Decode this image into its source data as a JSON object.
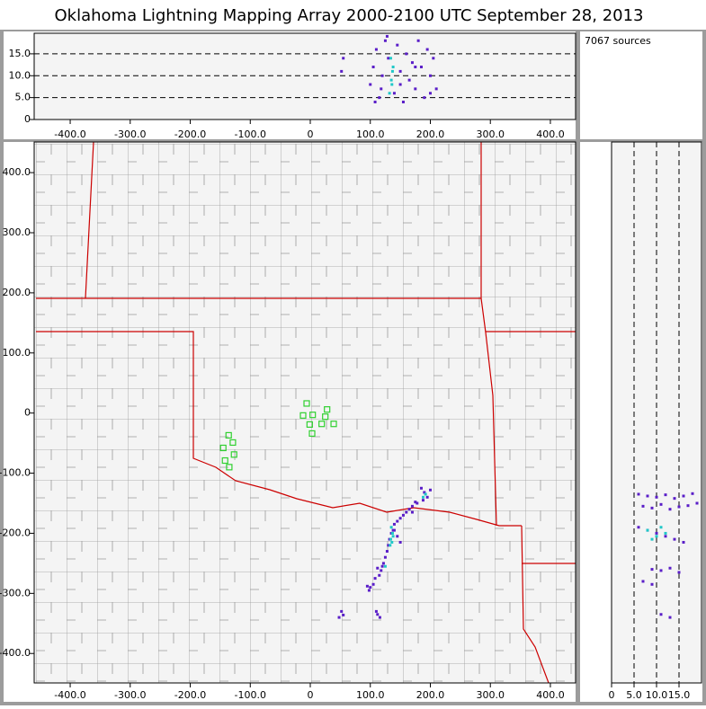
{
  "title": "Oklahoma Lightning Mapping Array   2000-2100 UTC  September 28, 2013",
  "annotation": "7067 sources",
  "chart_data": [
    {
      "type": "scatter",
      "grid": "y",
      "xlim": [
        -460,
        442
      ],
      "ylim": [
        0,
        19.7
      ],
      "xticks": [
        {
          "value": -400,
          "label": "-400.0"
        },
        {
          "value": -300,
          "label": "-300.0"
        },
        {
          "value": -200,
          "label": "-200.0"
        },
        {
          "value": -100,
          "label": "-100.0"
        },
        0,
        {
          "value": 100,
          "label": "100.0"
        },
        {
          "value": 200,
          "label": "200.0"
        },
        {
          "value": 300,
          "label": "300.0"
        },
        {
          "value": 400,
          "label": "400.0"
        }
      ],
      "yticks": [
        0,
        {
          "value": 5,
          "label": "5.0"
        },
        {
          "value": 10,
          "label": "10.0"
        },
        {
          "value": 15,
          "label": "15.0"
        }
      ],
      "series": [
        {
          "color": "#5a1ec8",
          "x": [
            100,
            105,
            110,
            115,
            120,
            125,
            130,
            140,
            145,
            150,
            155,
            160,
            165,
            170,
            175,
            180,
            185,
            190,
            195,
            200,
            205,
            210,
            55,
            52,
            108,
            118,
            150,
            175,
            200,
            128
          ],
          "values": [
            8,
            12,
            16,
            5,
            10,
            18,
            14,
            6,
            17,
            11,
            4,
            15,
            9,
            13,
            7,
            18,
            12,
            5,
            16,
            10,
            14,
            7,
            14,
            11,
            4,
            7,
            8,
            12,
            6,
            19
          ]
        },
        {
          "color": "#20c8c8",
          "x": [
            132,
            135,
            138,
            134,
            136,
            137
          ],
          "values": [
            6,
            9,
            12,
            14,
            8,
            11
          ]
        }
      ]
    },
    {
      "type": "scatter",
      "grid": "none",
      "xlim": [
        -460,
        442
      ],
      "ylim": [
        -449,
        451
      ],
      "xticks": [
        {
          "value": -400,
          "label": "-400.0"
        },
        {
          "value": -300,
          "label": "-300.0"
        },
        {
          "value": -200,
          "label": "-200.0"
        },
        {
          "value": -100,
          "label": "-100.0"
        },
        0,
        {
          "value": 100,
          "label": "100.0"
        },
        {
          "value": 200,
          "label": "200.0"
        },
        {
          "value": 300,
          "label": "300.0"
        },
        {
          "value": 400,
          "label": "400.0"
        }
      ],
      "yticks": [
        {
          "value": -400,
          "label": "-400.0"
        },
        {
          "value": -300,
          "label": "-300.0"
        },
        {
          "value": -200,
          "label": "-200.0"
        },
        {
          "value": -100,
          "label": "-100.0"
        },
        0,
        {
          "value": 100,
          "label": "100.0"
        },
        {
          "value": 200,
          "label": "200.0"
        },
        {
          "value": 300,
          "label": "300.0"
        },
        {
          "value": 400,
          "label": "400.0"
        }
      ],
      "series": [
        {
          "color": "#5a1ec8",
          "x": [
            185,
            190,
            195,
            200,
            188,
            178,
            170,
            165,
            160,
            155,
            150,
            145,
            140,
            138,
            135,
            132,
            130,
            128,
            125,
            122,
            120,
            118,
            115,
            112,
            108,
            105,
            100,
            98,
            95,
            110,
            112,
            116,
            52,
            55,
            48,
            145,
            150,
            140,
            170,
            175
          ],
          "values": [
            -125,
            -132,
            -140,
            -128,
            -145,
            -150,
            -155,
            -160,
            -165,
            -170,
            -175,
            -180,
            -185,
            -195,
            -200,
            -210,
            -220,
            -230,
            -240,
            -250,
            -255,
            -262,
            -270,
            -258,
            -275,
            -285,
            -290,
            -295,
            -288,
            -330,
            -335,
            -340,
            -330,
            -336,
            -340,
            -205,
            -215,
            -195,
            -165,
            -148
          ]
        },
        {
          "color": "#20c8c8",
          "x": [
            135,
            137,
            134,
            133,
            138,
            136,
            192,
            125,
            188
          ],
          "values": [
            -190,
            -200,
            -210,
            -220,
            -205,
            -215,
            -135,
            -255,
            -140
          ]
        },
        {
          "color": "#30d030",
          "marker": "square",
          "x": [
            -6,
            -12,
            4,
            28,
            25,
            19,
            -1,
            3,
            39,
            -136,
            -145,
            -129,
            -127,
            -142,
            -135
          ],
          "values": [
            16,
            -4,
            -3,
            6,
            -6,
            -18,
            -19,
            -34,
            -18,
            -37,
            -58,
            -49,
            -69,
            -79,
            -90
          ]
        }
      ]
    },
    {
      "type": "scatter",
      "grid": "x",
      "xlim": [
        0,
        20
      ],
      "ylim": [
        -449,
        451
      ],
      "xticks": [
        0,
        {
          "value": 5,
          "label": "5.0"
        },
        {
          "value": 10,
          "label": "10.0"
        },
        {
          "value": 15,
          "label": "15.0"
        }
      ],
      "series": [
        {
          "color": "#5a1ec8",
          "x": [
            6,
            8,
            10,
            12,
            14,
            16,
            18,
            7,
            9,
            11,
            13,
            15,
            17,
            19,
            6,
            8,
            10,
            12,
            14,
            16,
            9,
            11,
            13,
            15,
            7,
            9,
            11,
            13
          ],
          "values": [
            -135,
            -138,
            -140,
            -136,
            -142,
            -138,
            -134,
            -155,
            -158,
            -152,
            -160,
            -156,
            -154,
            -150,
            -190,
            -195,
            -200,
            -205,
            -210,
            -215,
            -260,
            -262,
            -258,
            -265,
            -280,
            -285,
            -335,
            -340
          ]
        },
        {
          "color": "#20c8c8",
          "x": [
            8,
            10,
            12,
            9,
            11
          ],
          "values": [
            -195,
            -205,
            -200,
            -210,
            -190
          ]
        }
      ]
    }
  ]
}
